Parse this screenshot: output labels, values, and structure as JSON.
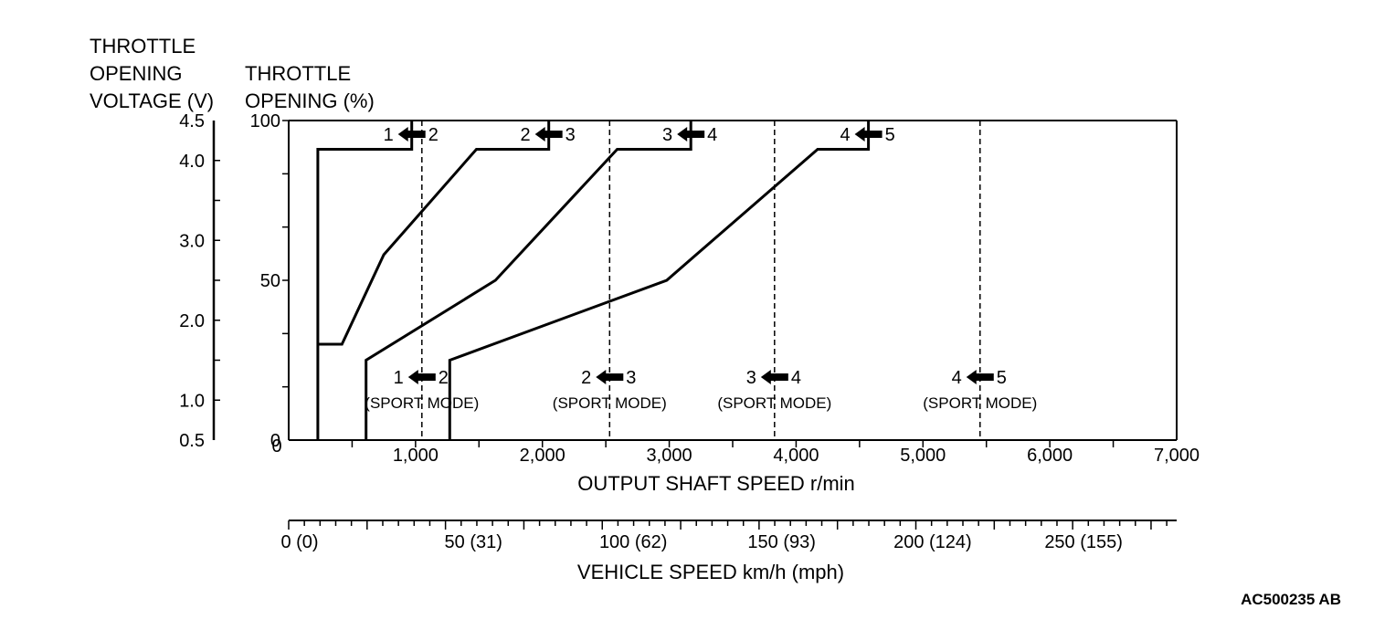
{
  "figure_code": "AC500235 AB",
  "chart_data": {
    "type": "line",
    "title": "",
    "left_axis_label": [
      "THROTTLE",
      "OPENING",
      "VOLTAGE (V)"
    ],
    "left_axis_ticks": [
      "4.5",
      "4.0",
      "3.0",
      "2.0",
      "1.0",
      "0.5"
    ],
    "left_axis_tick_values": [
      4.5,
      4.0,
      3.0,
      2.0,
      1.0,
      0.5
    ],
    "ylabel": [
      "THROTTLE",
      "OPENING (%)"
    ],
    "ylim": [
      0,
      100
    ],
    "y_ticks": [
      "0",
      "50",
      "100"
    ],
    "xlabel": "OUTPUT SHAFT SPEED r/min",
    "xlim": [
      0,
      7000
    ],
    "x_ticks": [
      "1,000",
      "2,000",
      "3,000",
      "4,000",
      "5,000",
      "6,000",
      "7,000"
    ],
    "x_tick_values": [
      1000,
      2000,
      3000,
      4000,
      5000,
      6000,
      7000
    ],
    "secondary_xlabel": "VEHICLE SPEED km/h (mph)",
    "secondary_x_ticks": [
      "0 (0)",
      "50 (31)",
      "100 (62)",
      "150 (93)",
      "200 (124)",
      "250 (155)"
    ],
    "secondary_x_tick_positions_rpm": [
      0,
      1370,
      2630,
      3800,
      4990,
      6180
    ],
    "series": [
      {
        "name": "1←2",
        "x": [
          230,
          230,
          970,
          970
        ],
        "y": [
          0,
          91,
          91,
          100
        ]
      },
      {
        "name": "2←3",
        "x": [
          230,
          420,
          750,
          1480,
          2050,
          2050
        ],
        "y": [
          30,
          30,
          58,
          91,
          91,
          100
        ]
      },
      {
        "name": "3←4",
        "x": [
          610,
          610,
          1630,
          2590,
          3170,
          3170
        ],
        "y": [
          0,
          25,
          50,
          91,
          91,
          100
        ]
      },
      {
        "name": "4←5",
        "x": [
          1270,
          1270,
          2980,
          4170,
          4570,
          4570
        ],
        "y": [
          0,
          25,
          50,
          91,
          91,
          100
        ]
      }
    ],
    "sport_mode_lines": [
      {
        "label": "1←2",
        "x": 1050
      },
      {
        "label": "2←3",
        "x": 2530
      },
      {
        "label": "3←4",
        "x": 3830
      },
      {
        "label": "4←5",
        "x": 5450
      }
    ],
    "top_labels": [
      {
        "from": "1",
        "to": "2",
        "x": 970
      },
      {
        "from": "2",
        "to": "3",
        "x": 2050
      },
      {
        "from": "3",
        "to": "4",
        "x": 3170
      },
      {
        "from": "4",
        "to": "5",
        "x": 4570
      }
    ],
    "sport_mode_text": "(SPORT MODE)",
    "grid": false,
    "legend": "none"
  }
}
